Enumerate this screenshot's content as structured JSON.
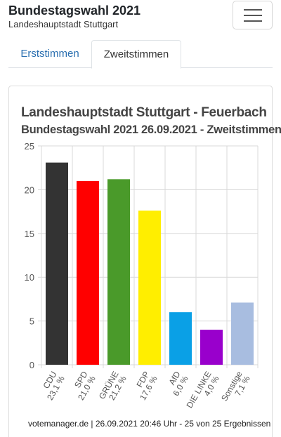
{
  "header": {
    "title": "Bundestagswahl 2021",
    "subtitle": "Landeshauptstadt Stuttgart",
    "menu_icon": "hamburger-menu-icon"
  },
  "tabs": [
    {
      "label": "Erststimmen",
      "active": false
    },
    {
      "label": "Zweitstimmen",
      "active": true
    }
  ],
  "chart_data": {
    "type": "bar",
    "title": "Landeshauptstadt Stuttgart - Feuerbach",
    "subtitle": "Bundestagswahl 2021 26.09.2021  - Zweitstimmen",
    "categories": [
      "CDU",
      "SPD",
      "GRÜNE",
      "FDP",
      "AfD",
      "DIE LINKE",
      "Sonstige"
    ],
    "values": [
      23.1,
      21.0,
      21.2,
      17.6,
      6.0,
      4.0,
      7.1
    ],
    "value_labels": [
      "23,1 %",
      "21,0 %",
      "21,2 %",
      "17,6 %",
      "6,0 %",
      "4,0 %",
      "7,1 %"
    ],
    "colors": [
      "#333333",
      "#ff0000",
      "#4a9a2a",
      "#ffee00",
      "#0aa0e6",
      "#9900cc",
      "#a8bde0"
    ],
    "yticks": [
      0,
      5,
      10,
      15,
      20,
      25
    ],
    "ylim": [
      0,
      25
    ],
    "grid": true,
    "xlabel": "",
    "ylabel": ""
  },
  "footer": {
    "text": "votemanager.de | 26.09.2021 20:46 Uhr - 25 von 25 Ergebnissen"
  }
}
